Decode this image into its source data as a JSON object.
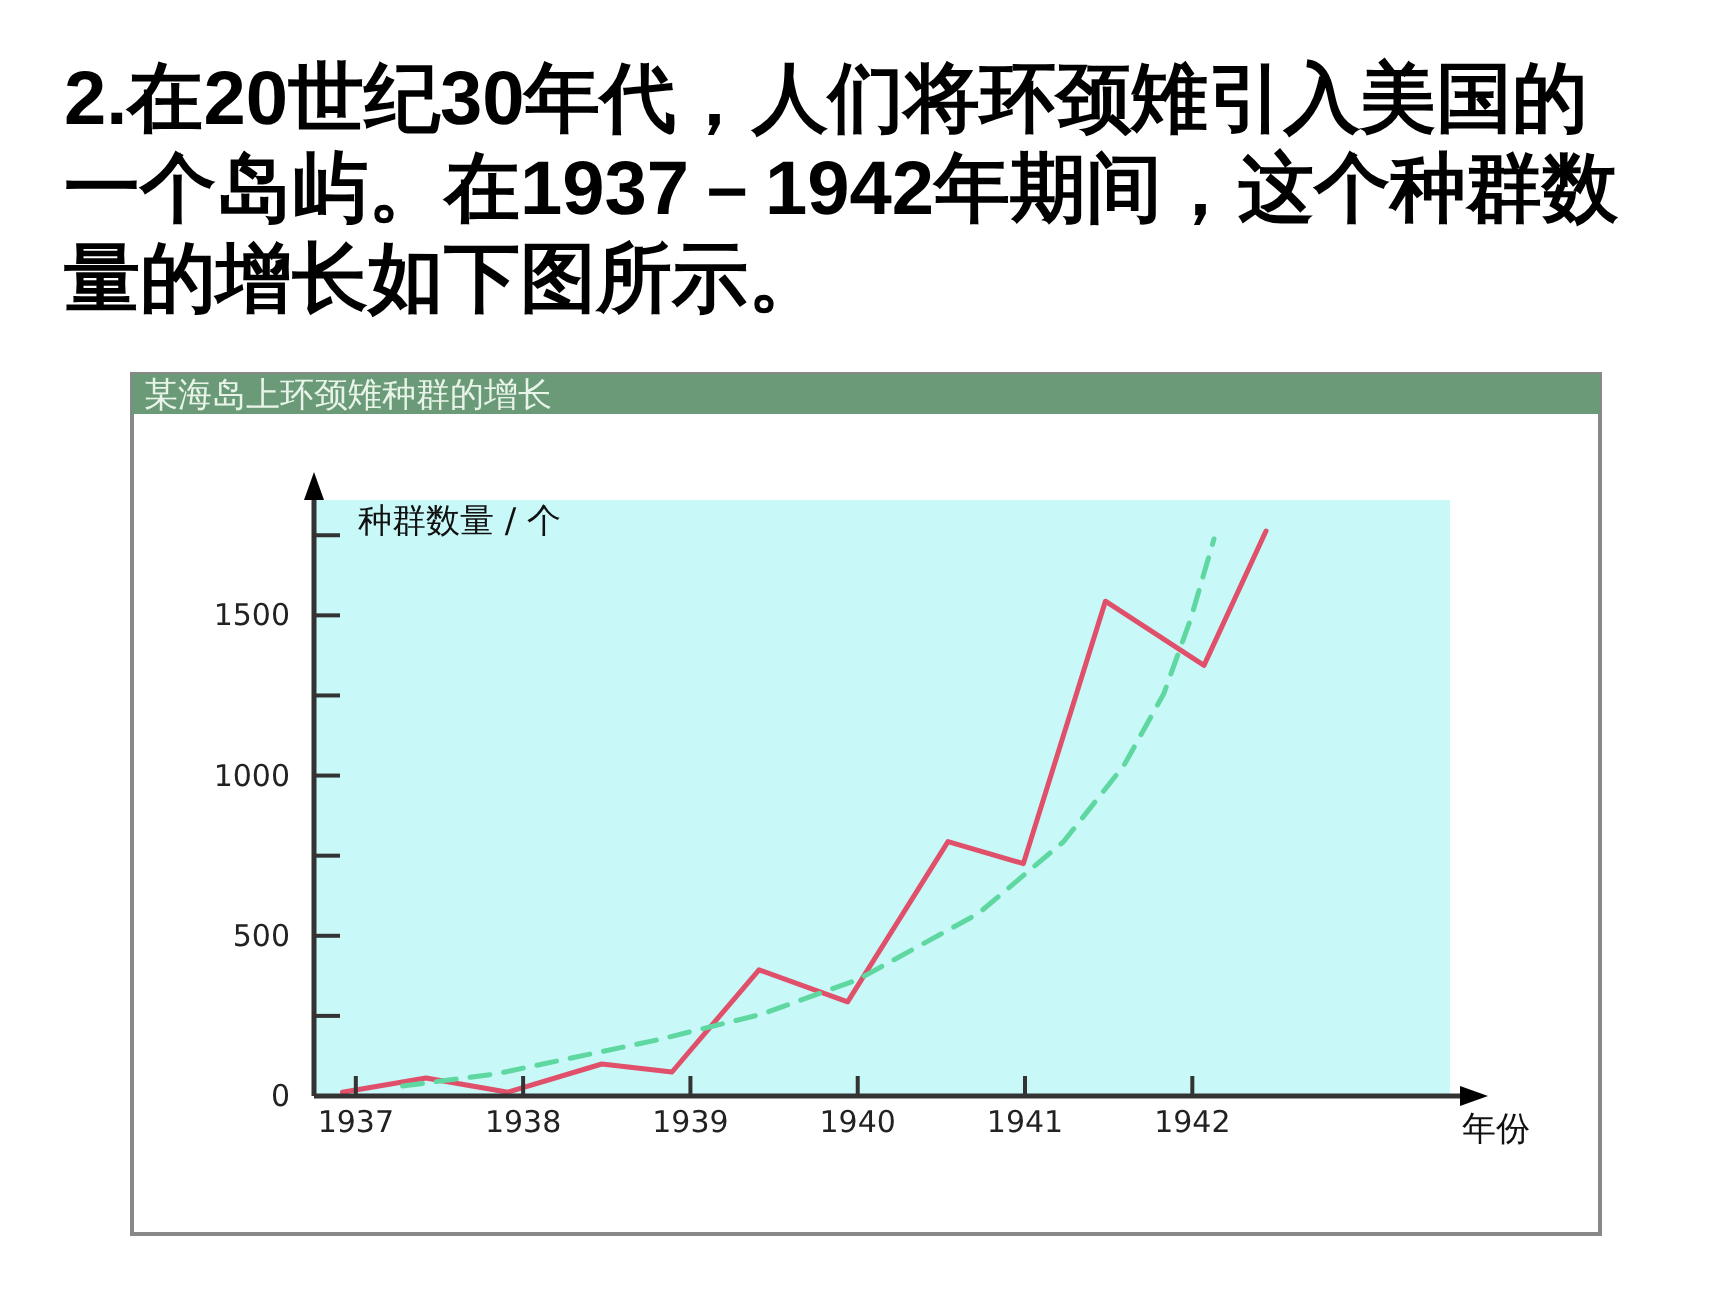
{
  "chart_data": {
    "type": "line",
    "title": "2.在20世纪30年代，人们将环颈雉引入美国的一个岛屿。在1937－1942年期间，这个种群数量的增长如下图所示。",
    "subtitle": "某海岛上环颈雉种群的增长",
    "xlabel": "年份",
    "ylabel": "种群数量 / 个",
    "xlim": [
      1936.75,
      1943.6
    ],
    "ylim": [
      0,
      1860
    ],
    "xticks": [
      1937,
      1938,
      1939,
      1940,
      1941,
      1942
    ],
    "yticks": [
      0,
      {
        "value": 250,
        "label": null
      },
      500,
      {
        "value": 750,
        "label": null
      },
      1000,
      {
        "value": 1250,
        "label": null
      },
      1500,
      {
        "value": 1750,
        "label": null
      }
    ],
    "series": [
      {
        "color": "#e0506a",
        "line_style": "solid",
        "x": [
          1936.92,
          1937.42,
          1937.91,
          1938.47,
          1938.89,
          1939.41,
          1939.94,
          1940.54,
          1940.99,
          1941.48,
          1942.07,
          1942.44
        ],
        "values": [
          12,
          56,
          12,
          100,
          75,
          394,
          294,
          794,
          725,
          1544,
          1344,
          1763
        ]
      },
      {
        "color": "#5ed8a0",
        "line_style": "dashed",
        "x": [
          1937.28,
          1937.84,
          1938.8,
          1939.43,
          1940.0,
          1940.72,
          1941.23,
          1941.59,
          1941.83,
          1941.99,
          1942.13
        ],
        "values": [
          31,
          69,
          175,
          256,
          363,
          569,
          794,
          1031,
          1256,
          1488,
          1738
        ]
      }
    ]
  }
}
